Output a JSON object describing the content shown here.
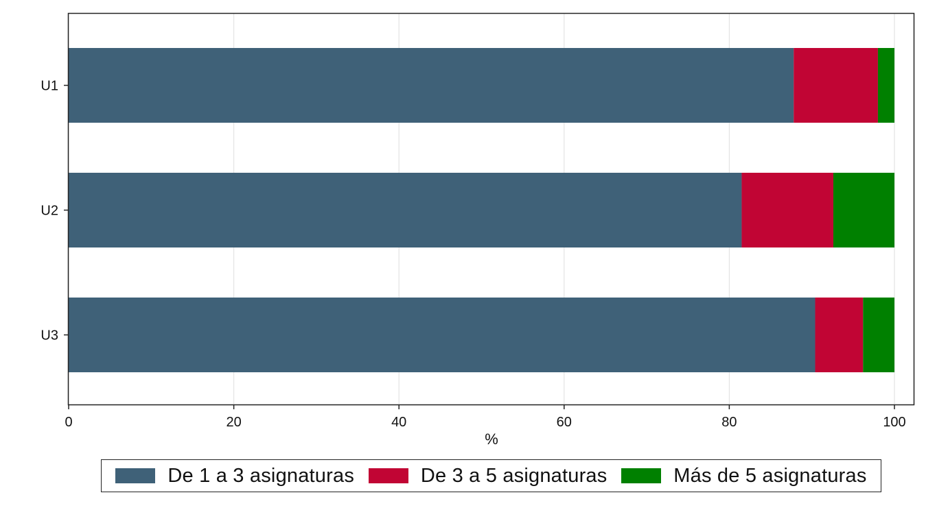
{
  "chart_data": {
    "type": "bar",
    "orientation": "horizontal",
    "stacked": true,
    "categories": [
      "U1",
      "U2",
      "U3"
    ],
    "series": [
      {
        "name": "De 1 a 3 asignaturas",
        "values": [
          87.8,
          81.5,
          90.4
        ],
        "color": "#3f6178"
      },
      {
        "name": "De 3 a 5 asignaturas",
        "values": [
          10.2,
          11.1,
          5.8
        ],
        "color": "#c10534"
      },
      {
        "name": "Más de 5 asignaturas",
        "values": [
          2.0,
          7.4,
          3.8
        ],
        "color": "#008000"
      }
    ],
    "xlabel": "%",
    "ylabel": "",
    "title": "",
    "xlim": [
      0,
      100
    ],
    "xticks": [
      "0",
      "20",
      "40",
      "60",
      "80",
      "100"
    ],
    "grid": "vertical",
    "legend_position": "bottom"
  }
}
